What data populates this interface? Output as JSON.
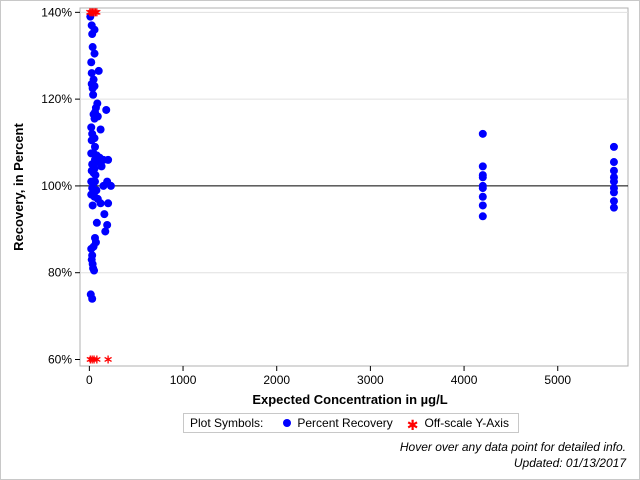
{
  "chart_data": {
    "type": "scatter",
    "xlabel": "Expected Concentration in µg/L",
    "ylabel": "Recovery, in Percent",
    "xlim": [
      -100,
      5750
    ],
    "ylim": [
      58.5,
      141
    ],
    "x_ticks": [
      0,
      1000,
      2000,
      3000,
      4000,
      5000
    ],
    "x_tick_labels": [
      "0",
      "1000",
      "2000",
      "3000",
      "4000",
      "5000"
    ],
    "y_ticks": [
      60,
      80,
      100,
      120,
      140
    ],
    "y_tick_labels": [
      "60%",
      "80%",
      "100%",
      "120%",
      "140%"
    ],
    "y_gridlines": [
      80,
      120,
      140
    ],
    "reference_line": 100,
    "series": [
      {
        "name": "Percent Recovery",
        "marker": "circle",
        "color": "#0000ff",
        "points": [
          [
            10,
            139
          ],
          [
            25,
            137
          ],
          [
            55,
            136
          ],
          [
            30,
            135
          ],
          [
            35,
            132
          ],
          [
            55,
            130.5
          ],
          [
            20,
            128.5
          ],
          [
            100,
            126.5
          ],
          [
            25,
            126
          ],
          [
            45,
            124.5
          ],
          [
            25,
            123.5
          ],
          [
            55,
            123
          ],
          [
            35,
            122.5
          ],
          [
            40,
            121
          ],
          [
            85,
            119
          ],
          [
            70,
            118
          ],
          [
            180,
            117.5
          ],
          [
            60,
            117
          ],
          [
            45,
            116.5
          ],
          [
            90,
            116
          ],
          [
            55,
            115.5
          ],
          [
            20,
            113.5
          ],
          [
            120,
            113
          ],
          [
            30,
            112
          ],
          [
            55,
            111
          ],
          [
            25,
            110.5
          ],
          [
            60,
            109
          ],
          [
            20,
            107.5
          ],
          [
            45,
            107.5
          ],
          [
            80,
            107
          ],
          [
            110,
            106.5
          ],
          [
            150,
            106
          ],
          [
            200,
            106
          ],
          [
            60,
            106
          ],
          [
            90,
            105.5
          ],
          [
            30,
            105
          ],
          [
            130,
            104.5
          ],
          [
            55,
            104
          ],
          [
            25,
            103.5
          ],
          [
            45,
            103
          ],
          [
            65,
            102.5
          ],
          [
            20,
            101
          ],
          [
            60,
            101
          ],
          [
            190,
            101
          ],
          [
            40,
            100.5
          ],
          [
            150,
            100
          ],
          [
            230,
            100
          ],
          [
            30,
            99.5
          ],
          [
            75,
            99
          ],
          [
            45,
            98.5
          ],
          [
            20,
            98
          ],
          [
            55,
            97.5
          ],
          [
            90,
            97
          ],
          [
            120,
            96
          ],
          [
            200,
            96
          ],
          [
            35,
            95.5
          ],
          [
            160,
            93.5
          ],
          [
            80,
            91.5
          ],
          [
            190,
            91
          ],
          [
            170,
            89.5
          ],
          [
            60,
            88
          ],
          [
            70,
            87
          ],
          [
            45,
            86
          ],
          [
            20,
            85.5
          ],
          [
            30,
            84
          ],
          [
            25,
            83
          ],
          [
            35,
            82
          ],
          [
            40,
            81
          ],
          [
            50,
            80.5
          ],
          [
            15,
            75
          ],
          [
            30,
            74
          ],
          [
            4200,
            112
          ],
          [
            4200,
            104.5
          ],
          [
            4200,
            102.5
          ],
          [
            4200,
            102
          ],
          [
            4200,
            100
          ],
          [
            4200,
            99.5
          ],
          [
            4200,
            97.5
          ],
          [
            4200,
            95.5
          ],
          [
            4200,
            93
          ],
          [
            5600,
            109
          ],
          [
            5600,
            105.5
          ],
          [
            5600,
            103.5
          ],
          [
            5600,
            102
          ],
          [
            5600,
            101
          ],
          [
            5600,
            99.5
          ],
          [
            5600,
            98.5
          ],
          [
            5600,
            96.5
          ],
          [
            5600,
            95
          ]
        ]
      },
      {
        "name": "Off-scale Y-Axis",
        "marker": "asterisk",
        "color": "#ff0000",
        "points": [
          [
            5,
            140
          ],
          [
            20,
            140
          ],
          [
            35,
            140
          ],
          [
            50,
            140
          ],
          [
            65,
            140
          ],
          [
            80,
            140
          ],
          [
            10,
            60
          ],
          [
            30,
            60
          ],
          [
            50,
            60
          ],
          [
            80,
            60
          ],
          [
            200,
            60
          ]
        ]
      }
    ]
  },
  "legend": {
    "title": "Plot Symbols:",
    "items": [
      "Percent Recovery",
      "Off-scale Y-Axis"
    ]
  },
  "footnotes": {
    "hover": "Hover over any data point for detailed info.",
    "updated": "Updated: 01/13/2017"
  }
}
